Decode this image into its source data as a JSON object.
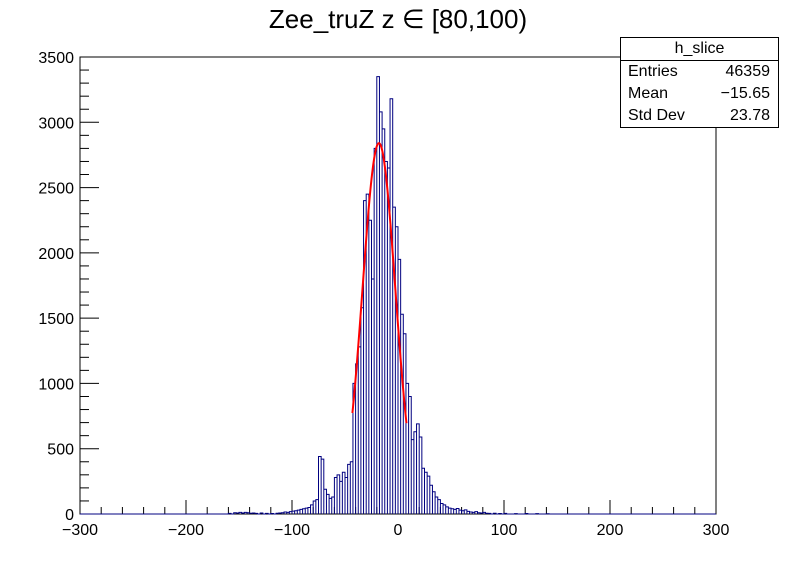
{
  "chart_data": {
    "type": "histogram",
    "title": "Zee_truZ z  ∈ [80,100)",
    "xlim": [
      -300,
      300
    ],
    "ylim": [
      0,
      3500
    ],
    "x_ticks": [
      -300,
      -200,
      -100,
      0,
      100,
      200,
      300
    ],
    "x_tick_labels": [
      "−300",
      "−200",
      "−100",
      "0",
      "100",
      "200",
      "300"
    ],
    "y_ticks": [
      0,
      500,
      1000,
      1500,
      2000,
      2500,
      3000,
      3500
    ],
    "y_tick_labels": [
      "0",
      "500",
      "1000",
      "1500",
      "2000",
      "2500",
      "3000",
      "3500"
    ],
    "bin_width": 2.5,
    "series": [
      {
        "kind": "histogram",
        "color": "#000080",
        "bins": [
          [
            -160,
            5
          ],
          [
            -155,
            10
          ],
          [
            -152.5,
            8
          ],
          [
            -150,
            12
          ],
          [
            -147.5,
            8
          ],
          [
            -145,
            12
          ],
          [
            -142.5,
            10
          ],
          [
            -140,
            6
          ],
          [
            -137.5,
            8
          ],
          [
            -135,
            5
          ],
          [
            -130,
            8
          ],
          [
            -125,
            5
          ],
          [
            -120,
            4
          ],
          [
            -115,
            6
          ],
          [
            -112.5,
            8
          ],
          [
            -110,
            10
          ],
          [
            -107.5,
            15
          ],
          [
            -105,
            12
          ],
          [
            -102.5,
            18
          ],
          [
            -100,
            22
          ],
          [
            -97.5,
            25
          ],
          [
            -95,
            30
          ],
          [
            -92.5,
            35
          ],
          [
            -90,
            40
          ],
          [
            -87.5,
            45
          ],
          [
            -85,
            50
          ],
          [
            -82.5,
            70
          ],
          [
            -80,
            100
          ],
          [
            -77.5,
            110
          ],
          [
            -75,
            440
          ],
          [
            -72.5,
            420
          ],
          [
            -70,
            190
          ],
          [
            -67.5,
            150
          ],
          [
            -65,
            120
          ],
          [
            -62.5,
            130
          ],
          [
            -60,
            280
          ],
          [
            -57.5,
            300
          ],
          [
            -55,
            250
          ],
          [
            -52.5,
            320
          ],
          [
            -50,
            280
          ],
          [
            -47.5,
            380
          ],
          [
            -45,
            400
          ],
          [
            -42.5,
            1000
          ],
          [
            -40,
            1150
          ],
          [
            -37.5,
            1280
          ],
          [
            -35,
            1580
          ],
          [
            -32.5,
            2400
          ],
          [
            -30,
            2450
          ],
          [
            -27.5,
            2250
          ],
          [
            -25,
            1800
          ],
          [
            -22.5,
            2800
          ],
          [
            -20,
            3350
          ],
          [
            -17.5,
            3080
          ],
          [
            -15,
            2950
          ],
          [
            -12.5,
            2700
          ],
          [
            -10,
            2650
          ],
          [
            -7.5,
            3180
          ],
          [
            -5,
            2350
          ],
          [
            -2.5,
            2200
          ],
          [
            0,
            1950
          ],
          [
            2.5,
            1530
          ],
          [
            5,
            1380
          ],
          [
            7.5,
            1000
          ],
          [
            10,
            900
          ],
          [
            12.5,
            570
          ],
          [
            15,
            630
          ],
          [
            17.5,
            690
          ],
          [
            20,
            590
          ],
          [
            22.5,
            350
          ],
          [
            25,
            320
          ],
          [
            27.5,
            290
          ],
          [
            30,
            220
          ],
          [
            32.5,
            170
          ],
          [
            35,
            130
          ],
          [
            37.5,
            110
          ],
          [
            40,
            80
          ],
          [
            42.5,
            70
          ],
          [
            45,
            55
          ],
          [
            47.5,
            45
          ],
          [
            50,
            40
          ],
          [
            52.5,
            35
          ],
          [
            55,
            42
          ],
          [
            57.5,
            30
          ],
          [
            60,
            25
          ],
          [
            62.5,
            32
          ],
          [
            65,
            20
          ],
          [
            67.5,
            15
          ],
          [
            70,
            12
          ],
          [
            72.5,
            18
          ],
          [
            75,
            10
          ],
          [
            77.5,
            8
          ],
          [
            80,
            12
          ],
          [
            82.5,
            6
          ],
          [
            85,
            5
          ],
          [
            90,
            6
          ],
          [
            95,
            4
          ],
          [
            100,
            5
          ],
          [
            110,
            3
          ],
          [
            120,
            4
          ],
          [
            130,
            3
          ],
          [
            140,
            2
          ]
        ]
      },
      {
        "kind": "gaussian-fit",
        "color": "#ff0000",
        "amplitude": 2840,
        "mean": -18,
        "sigma": 15.5,
        "range": [
          -43,
          8
        ]
      }
    ]
  },
  "stats_box": {
    "name": "h_slice",
    "rows": [
      {
        "label": "Entries",
        "value": "46359"
      },
      {
        "label": "Mean",
        "value": "−15.65"
      },
      {
        "label": "Std Dev",
        "value": "23.78"
      }
    ]
  }
}
